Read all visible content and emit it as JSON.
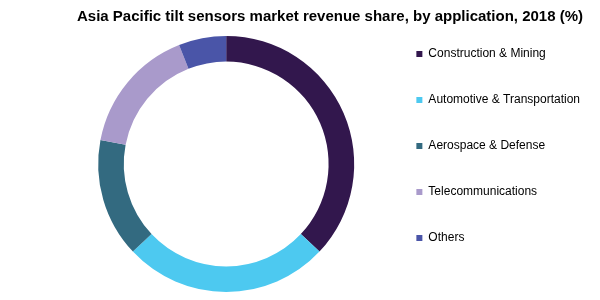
{
  "chart_data": {
    "type": "doughnut",
    "title": "Asia Pacific tilt sensors market revenue share, by application, 2018 (%)",
    "categories": [
      "Construction & Mining",
      "Automotive & Transportation",
      "Aerospace & Defense",
      "Telecommunications",
      "Others"
    ],
    "values": [
      37,
      26,
      15,
      16,
      6
    ],
    "colors": [
      "#32174d",
      "#4dc9f0",
      "#336a80",
      "#a99acb",
      "#4a55a8"
    ],
    "legend": "right"
  }
}
